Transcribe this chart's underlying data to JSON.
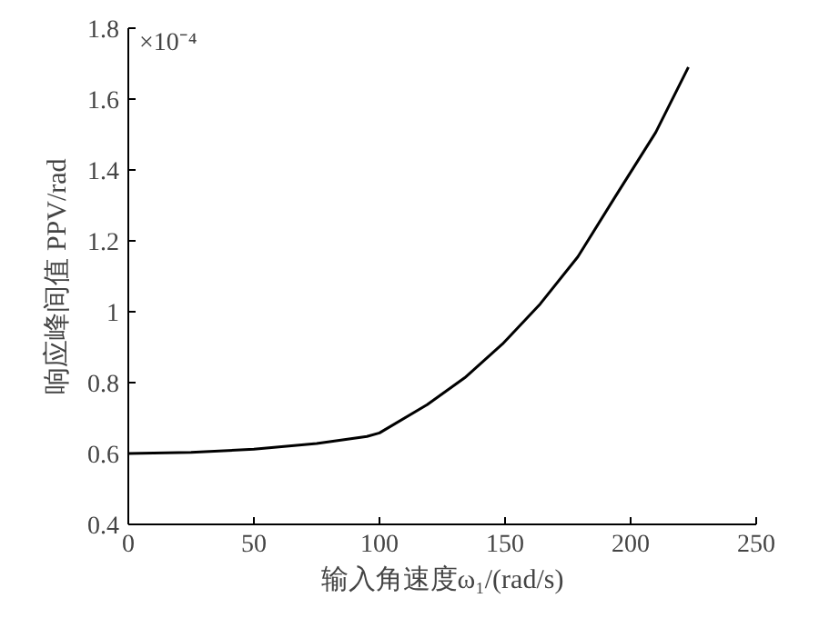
{
  "chart_data": {
    "type": "line",
    "xlabel": "输入角速度ω₁/(rad/s)",
    "ylabel": "响应峰间值 PPV/rad",
    "annotations": [
      "×10⁻⁴"
    ],
    "x": [
      0,
      25,
      50,
      75,
      95,
      100,
      119,
      134,
      149,
      164,
      179,
      194,
      210,
      223
    ],
    "series": [
      {
        "color": "#000000",
        "values": [
          0.6,
          0.603,
          0.612,
          0.628,
          0.648,
          0.658,
          0.738,
          0.814,
          0.909,
          1.022,
          1.155,
          1.326,
          1.506,
          1.69
        ]
      }
    ],
    "xlim": [
      0,
      250
    ],
    "xticks": [
      0,
      50,
      100,
      150,
      200,
      250
    ],
    "ylim": [
      0.4,
      1.8
    ],
    "yticks": [
      0.4,
      0.6,
      0.8,
      1,
      1.2,
      1.4,
      1.6,
      1.8
    ],
    "grid": false,
    "line_style": "solid"
  }
}
